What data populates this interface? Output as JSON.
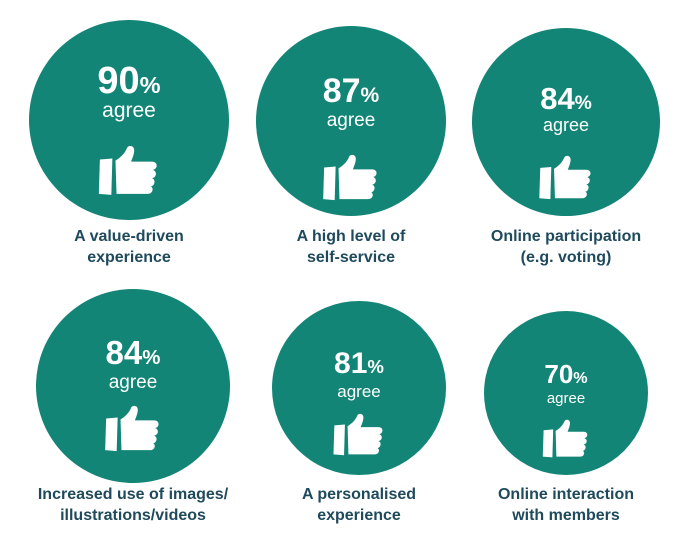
{
  "colors": {
    "circle": "#138576",
    "label": "#1f4a5c",
    "text": "#ffffff"
  },
  "items": [
    {
      "value": "90",
      "unit": "%",
      "agree": "agree",
      "label_line1": "A value-driven",
      "label_line2": "experience",
      "icon": "thumbs-up-icon"
    },
    {
      "value": "87",
      "unit": "%",
      "agree": "agree",
      "label_line1": "A high level of",
      "label_line2": "self-service",
      "icon": "thumbs-up-icon"
    },
    {
      "value": "84",
      "unit": "%",
      "agree": "agree",
      "label_line1": "Online participation",
      "label_line2": "(e.g. voting)",
      "icon": "thumbs-up-icon"
    },
    {
      "value": "84",
      "unit": "%",
      "agree": "agree",
      "label_line1": "Increased use of images/",
      "label_line2": "illustrations/videos",
      "icon": "thumbs-up-icon"
    },
    {
      "value": "81",
      "unit": "%",
      "agree": "agree",
      "label_line1": "A personalised",
      "label_line2": "experience",
      "icon": "thumbs-up-icon"
    },
    {
      "value": "70",
      "unit": "%",
      "agree": "agree",
      "label_line1": "Online interaction",
      "label_line2": "with members",
      "icon": "thumbs-up-icon"
    }
  ]
}
